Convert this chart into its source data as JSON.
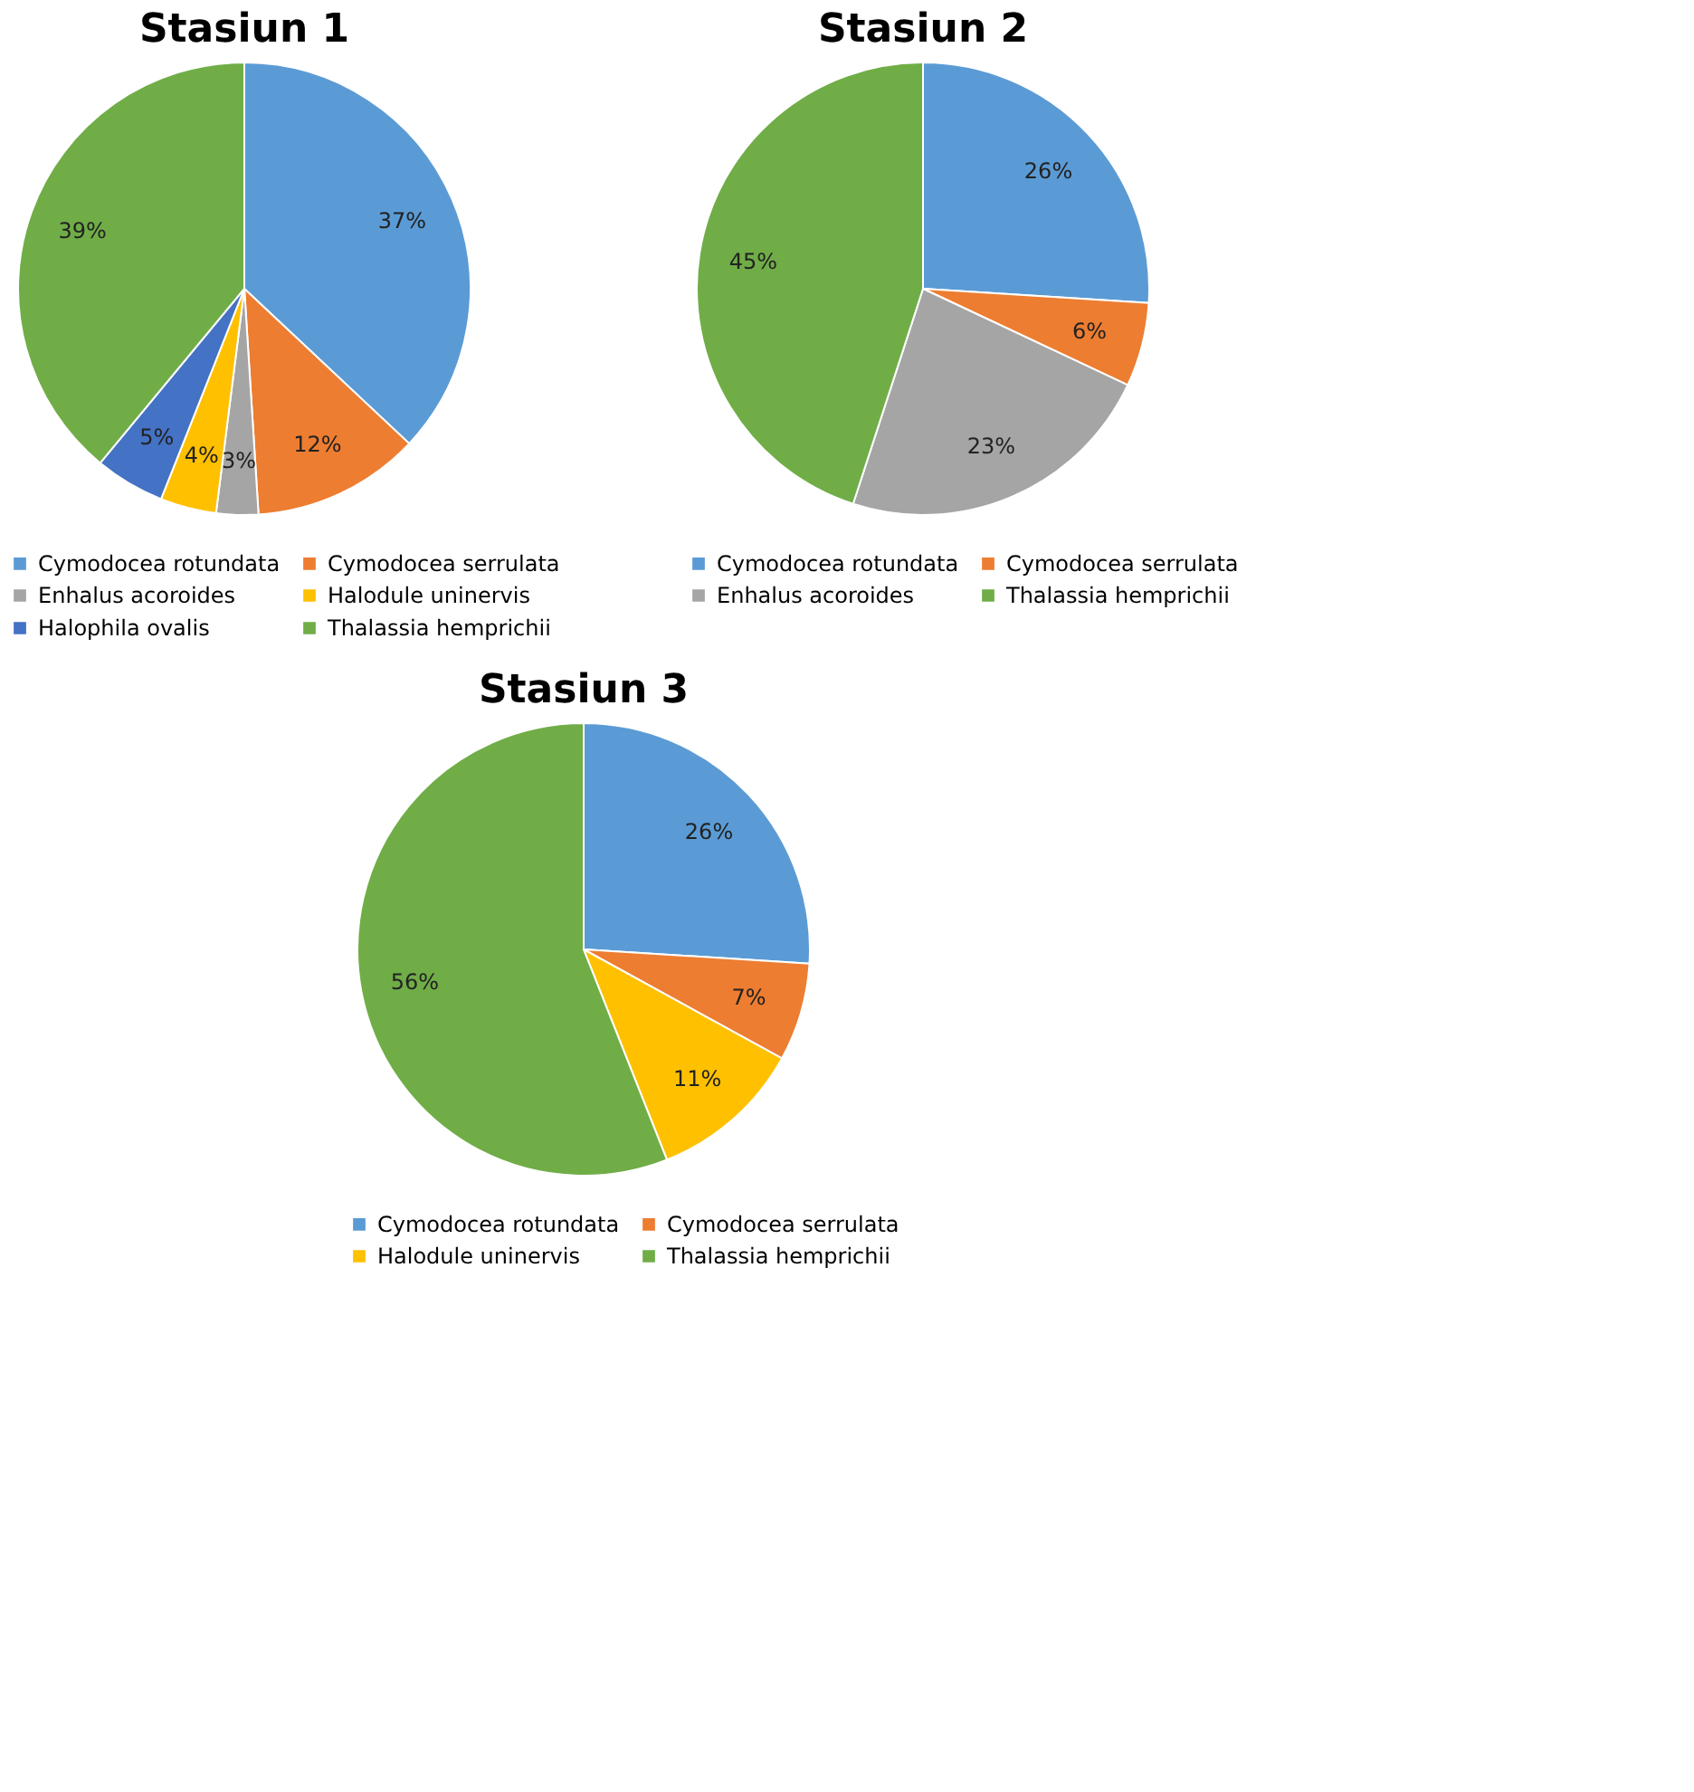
{
  "chart_data": [
    {
      "type": "pie",
      "title": "Stasiun 1",
      "categories": [
        "Cymodocea rotundata",
        "Cymodocea serrulata",
        "Enhalus acoroides",
        "Halodule uninervis",
        "Halophila ovalis",
        "Thalassia hemprichii"
      ],
      "values": [
        37,
        12,
        3,
        4,
        5,
        39
      ],
      "value_labels": [
        "37%",
        "12%",
        "3%",
        "4%",
        "5%",
        "39%"
      ],
      "colors": [
        "#5b9bd5",
        "#ed7d31",
        "#a5a5a5",
        "#ffc000",
        "#4472c4",
        "#70ad47"
      ],
      "legend": "bottom"
    },
    {
      "type": "pie",
      "title": "Stasiun 2",
      "categories": [
        "Cymodocea rotundata",
        "Cymodocea serrulata",
        "Enhalus acoroides",
        "Thalassia hemprichii"
      ],
      "values": [
        26,
        6,
        23,
        45
      ],
      "value_labels": [
        "26%",
        "6%",
        "23%",
        "45%"
      ],
      "colors": [
        "#5b9bd5",
        "#ed7d31",
        "#a5a5a5",
        "#70ad47"
      ],
      "legend": "bottom"
    },
    {
      "type": "pie",
      "title": "Stasiun 3",
      "categories": [
        "Cymodocea rotundata",
        "Cymodocea serrulata",
        "Halodule uninervis",
        "Thalassia hemprichii"
      ],
      "values": [
        26,
        7,
        11,
        56
      ],
      "value_labels": [
        "26%",
        "7%",
        "11%",
        "56%"
      ],
      "colors": [
        "#5b9bd5",
        "#ed7d31",
        "#ffc000",
        "#70ad47"
      ],
      "legend": "bottom"
    }
  ]
}
